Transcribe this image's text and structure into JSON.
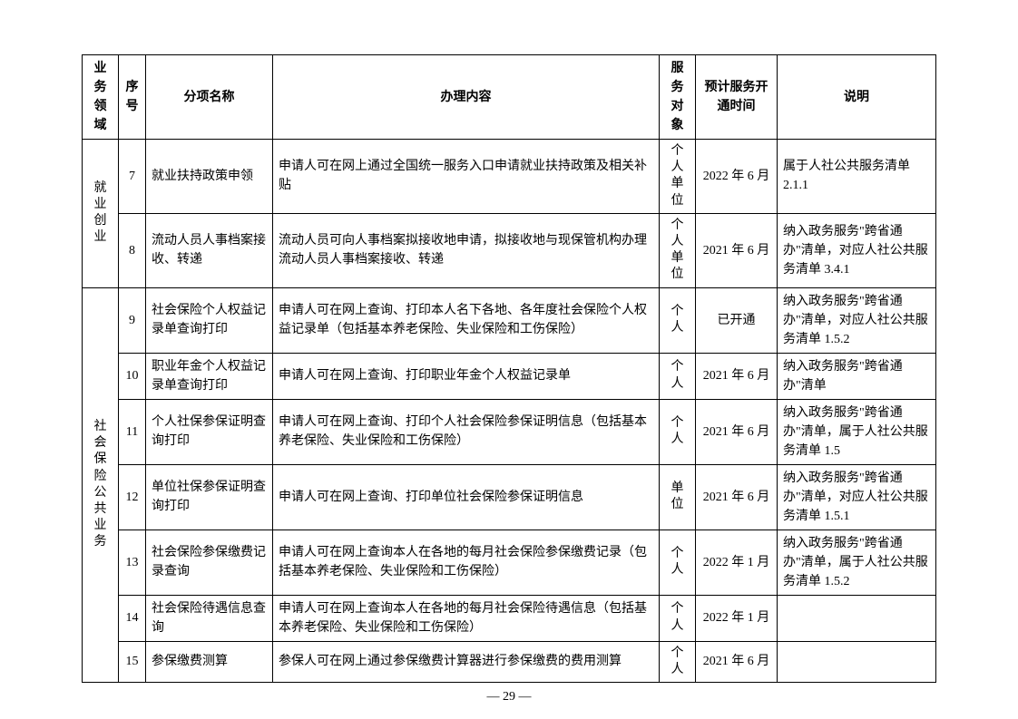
{
  "headers": {
    "domain": "业务领域",
    "seq": "序号",
    "name": "分项名称",
    "content": "办理内容",
    "target": "服务对象",
    "date": "预计服务开通时间",
    "note": "说明"
  },
  "domain1": "就业创业",
  "domain2": "社会保险公共业务",
  "rows": {
    "0": {
      "seq": "7",
      "name": "就业扶持政策申领",
      "content": "申请人可在网上通过全国统一服务入口申请就业扶持政策及相关补贴",
      "target": "个人单位",
      "date": "2022 年 6 月",
      "note": "属于人社公共服务清单 2.1.1"
    },
    "1": {
      "seq": "8",
      "name": "流动人员人事档案接收、转递",
      "content": "流动人员可向人事档案拟接收地申请，拟接收地与现保管机构办理流动人员人事档案接收、转递",
      "target": "个人单位",
      "date": "2021 年 6 月",
      "note": "纳入政务服务\"跨省通办\"清单，对应人社公共服务清单 3.4.1"
    },
    "2": {
      "seq": "9",
      "name": "社会保险个人权益记录单查询打印",
      "content": "申请人可在网上查询、打印本人名下各地、各年度社会保险个人权益记录单（包括基本养老保险、失业保险和工伤保险）",
      "target": "个人",
      "date": "已开通",
      "note": "纳入政务服务\"跨省通办\"清单，对应人社公共服务清单 1.5.2"
    },
    "3": {
      "seq": "10",
      "name": "职业年金个人权益记录单查询打印",
      "content": "申请人可在网上查询、打印职业年金个人权益记录单",
      "target": "个人",
      "date": "2021 年 6 月",
      "note": "纳入政务服务\"跨省通办\"清单"
    },
    "4": {
      "seq": "11",
      "name": "个人社保参保证明查询打印",
      "content": "申请人可在网上查询、打印个人社会保险参保证明信息（包括基本养老保险、失业保险和工伤保险）",
      "target": "个人",
      "date": "2021 年 6 月",
      "note": "纳入政务服务\"跨省通办\"清单，属于人社公共服务清单 1.5"
    },
    "5": {
      "seq": "12",
      "name": "单位社保参保证明查询打印",
      "content": "申请人可在网上查询、打印单位社会保险参保证明信息",
      "target": "单位",
      "date": "2021 年 6 月",
      "note": "纳入政务服务\"跨省通办\"清单，对应人社公共服务清单 1.5.1"
    },
    "6": {
      "seq": "13",
      "name": "社会保险参保缴费记录查询",
      "content": "申请人可在网上查询本人在各地的每月社会保险参保缴费记录（包括基本养老保险、失业保险和工伤保险）",
      "target": "个人",
      "date": "2022 年 1 月",
      "note": "纳入政务服务\"跨省通办\"清单，属于人社公共服务清单 1.5.2"
    },
    "7": {
      "seq": "14",
      "name": "社会保险待遇信息查询",
      "content": "申请人可在网上查询本人在各地的每月社会保险待遇信息（包括基本养老保险、失业保险和工伤保险）",
      "target": "个人",
      "date": "2022 年 1 月",
      "note": ""
    },
    "8": {
      "seq": "15",
      "name": "参保缴费测算",
      "content": "参保人可在网上通过参保缴费计算器进行参保缴费的费用测算",
      "target": "个人",
      "date": "2021 年 6 月",
      "note": ""
    }
  },
  "page": "— 29 —"
}
